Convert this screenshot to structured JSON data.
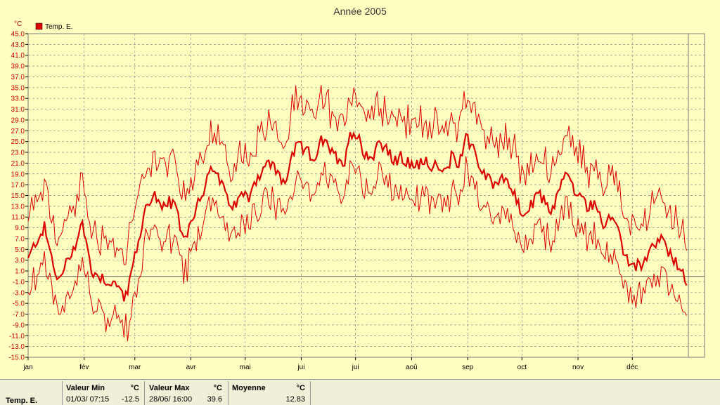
{
  "chart_data": {
    "type": "line",
    "title": "Année 2005",
    "ylabel": "°C",
    "ylim": [
      -15,
      45
    ],
    "yticks": [
      "45.0",
      "43.0",
      "41.0",
      "39.0",
      "37.0",
      "35.0",
      "33.0",
      "31.0",
      "29.0",
      "27.0",
      "25.0",
      "23.0",
      "21.0",
      "19.0",
      "17.0",
      "15.0",
      "13.0",
      "11.0",
      "9.0",
      "7.0",
      "5.0",
      "3.0",
      "1.0",
      "-1.0",
      "-3.0",
      "-5.0",
      "-7.0",
      "-9.0",
      "-11.0",
      "-13.0",
      "-15.0"
    ],
    "months": [
      "jan",
      "fév",
      "mar",
      "avr",
      "mai",
      "jui",
      "jui",
      "aoû",
      "sep",
      "oct",
      "nov",
      "déc"
    ],
    "legend": "Temp. E.",
    "reference_line": 0,
    "series_color": "#dd0000",
    "mean_anchors": [
      [
        0,
        3
      ],
      [
        5,
        7
      ],
      [
        9,
        9
      ],
      [
        14,
        2
      ],
      [
        17,
        -1
      ],
      [
        22,
        3
      ],
      [
        26,
        6
      ],
      [
        30,
        10
      ],
      [
        35,
        1
      ],
      [
        40,
        0
      ],
      [
        45,
        -1
      ],
      [
        50,
        -2
      ],
      [
        54,
        -4
      ],
      [
        58,
        2
      ],
      [
        62,
        8
      ],
      [
        66,
        14
      ],
      [
        70,
        15
      ],
      [
        74,
        12
      ],
      [
        78,
        14
      ],
      [
        82,
        12
      ],
      [
        86,
        7
      ],
      [
        90,
        10
      ],
      [
        94,
        14
      ],
      [
        98,
        17
      ],
      [
        102,
        20
      ],
      [
        106,
        18
      ],
      [
        110,
        14
      ],
      [
        114,
        13
      ],
      [
        118,
        15
      ],
      [
        122,
        15
      ],
      [
        126,
        18
      ],
      [
        130,
        20
      ],
      [
        134,
        21
      ],
      [
        138,
        19
      ],
      [
        142,
        17
      ],
      [
        146,
        23
      ],
      [
        150,
        24
      ],
      [
        154,
        23
      ],
      [
        158,
        22
      ],
      [
        162,
        25
      ],
      [
        166,
        24
      ],
      [
        170,
        22
      ],
      [
        174,
        20
      ],
      [
        178,
        27
      ],
      [
        182,
        26
      ],
      [
        186,
        23
      ],
      [
        190,
        22
      ],
      [
        194,
        25
      ],
      [
        198,
        24
      ],
      [
        202,
        21
      ],
      [
        206,
        22
      ],
      [
        210,
        21
      ],
      [
        214,
        20
      ],
      [
        218,
        22
      ],
      [
        222,
        21
      ],
      [
        226,
        20
      ],
      [
        230,
        19
      ],
      [
        234,
        22
      ],
      [
        238,
        21
      ],
      [
        242,
        26
      ],
      [
        246,
        24
      ],
      [
        250,
        20
      ],
      [
        254,
        18
      ],
      [
        258,
        17
      ],
      [
        262,
        19
      ],
      [
        266,
        17
      ],
      [
        270,
        14
      ],
      [
        274,
        11
      ],
      [
        278,
        13
      ],
      [
        282,
        15
      ],
      [
        286,
        14
      ],
      [
        290,
        12
      ],
      [
        294,
        17
      ],
      [
        298,
        19
      ],
      [
        302,
        16
      ],
      [
        306,
        14
      ],
      [
        310,
        13
      ],
      [
        314,
        14
      ],
      [
        318,
        9
      ],
      [
        322,
        11
      ],
      [
        326,
        8
      ],
      [
        330,
        4
      ],
      [
        334,
        2
      ],
      [
        338,
        2
      ],
      [
        342,
        3
      ],
      [
        346,
        6
      ],
      [
        350,
        7
      ],
      [
        354,
        4
      ],
      [
        358,
        3
      ],
      [
        362,
        0
      ],
      [
        364,
        -2
      ]
    ],
    "stats": {
      "label": "Temp. E.",
      "min_header": "Valeur Min",
      "min_unit": "°C",
      "min_date": "01/03/  07:15",
      "min_value": "-12.5",
      "max_header": "Valeur Max",
      "max_unit": "°C",
      "max_date": "28/06/  16:00",
      "max_value": "39.6",
      "mean_header": "Moyenne",
      "mean_unit": "°C",
      "mean_value": "12.83"
    }
  }
}
